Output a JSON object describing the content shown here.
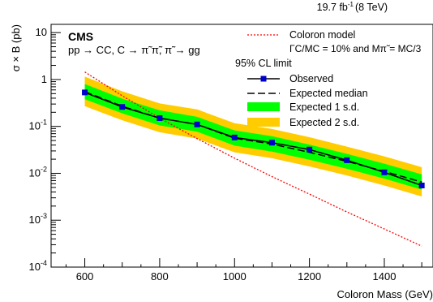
{
  "chart_data": {
    "type": "line",
    "lumi_label": "19.7 fb",
    "lumi_sup": "-1",
    "energy_label": "(8 TeV)",
    "experiment": "CMS",
    "process_label": "pp → CC, C → π̃ π̃, π̃ → gg",
    "ylabel": "σ × B (pb)",
    "xlabel": "Coloron Mass (GeV)",
    "xlim": [
      510,
      1530
    ],
    "ylim": [
      0.0001,
      15
    ],
    "y_scale": "log",
    "x_ticks": [
      600,
      800,
      1000,
      1200,
      1400
    ],
    "y_ticks": [
      {
        "value": 0.0001,
        "base": "10",
        "exp": "-4"
      },
      {
        "value": 0.001,
        "base": "10",
        "exp": "-3"
      },
      {
        "value": 0.01,
        "base": "10",
        "exp": "-2"
      },
      {
        "value": 0.1,
        "base": "10",
        "exp": "-1"
      },
      {
        "value": 1,
        "base": "1",
        "exp": ""
      },
      {
        "value": 10,
        "base": "10",
        "exp": ""
      }
    ],
    "legend": {
      "model_label": "Coloron model",
      "model_params": "ΓC/MC = 10% and Mπ̃ = MC/3",
      "cl_header": "95% CL limit",
      "observed": "Observed",
      "expected": "Expected median",
      "band1": "Expected 1 s.d.",
      "band2": "Expected 2 s.d."
    },
    "colors": {
      "band1": "#00ff00",
      "band2": "#ffcc00",
      "observed": "#0000cc",
      "model": "#ff0000"
    },
    "series": [
      {
        "name": "Observed",
        "x": [
          600,
          700,
          800,
          900,
          1000,
          1100,
          1200,
          1300,
          1400,
          1500
        ],
        "y": [
          0.53,
          0.26,
          0.15,
          0.11,
          0.058,
          0.045,
          0.032,
          0.019,
          0.0105,
          0.0055
        ]
      },
      {
        "name": "Expected median",
        "x": [
          600,
          700,
          800,
          900,
          1000,
          1100,
          1200,
          1300,
          1400,
          1500
        ],
        "y": [
          0.55,
          0.27,
          0.15,
          0.11,
          0.056,
          0.042,
          0.028,
          0.018,
          0.011,
          0.0065
        ]
      },
      {
        "name": "Expected 1 s.d.",
        "x": [
          600,
          700,
          800,
          900,
          1000,
          1100,
          1200,
          1300,
          1400,
          1500
        ],
        "low": [
          0.38,
          0.19,
          0.105,
          0.077,
          0.039,
          0.029,
          0.0195,
          0.0125,
          0.0077,
          0.0045
        ],
        "high": [
          0.8,
          0.39,
          0.22,
          0.16,
          0.082,
          0.062,
          0.041,
          0.026,
          0.016,
          0.0095
        ]
      },
      {
        "name": "Expected 2 s.d.",
        "x": [
          600,
          700,
          800,
          900,
          1000,
          1100,
          1200,
          1300,
          1400,
          1500
        ],
        "low": [
          0.27,
          0.135,
          0.075,
          0.055,
          0.028,
          0.021,
          0.014,
          0.009,
          0.0055,
          0.0032
        ],
        "high": [
          1.15,
          0.56,
          0.31,
          0.23,
          0.117,
          0.088,
          0.059,
          0.037,
          0.023,
          0.0135
        ]
      },
      {
        "name": "Coloron model",
        "x": [
          600,
          700,
          800,
          900,
          1000,
          1100,
          1200,
          1300,
          1400,
          1500
        ],
        "y": [
          1.45,
          0.45,
          0.15,
          0.055,
          0.021,
          0.0085,
          0.0036,
          0.0015,
          0.00065,
          0.00028
        ]
      }
    ]
  }
}
